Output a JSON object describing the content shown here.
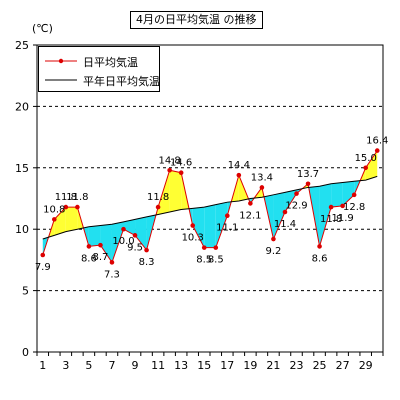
{
  "chart_data": {
    "type": "line",
    "title": "4月の日平均気温 の推移",
    "ylabel": "(℃)",
    "xlabel": "",
    "x": [
      1,
      2,
      3,
      4,
      5,
      6,
      7,
      8,
      9,
      10,
      11,
      12,
      13,
      14,
      15,
      16,
      17,
      18,
      19,
      20,
      21,
      22,
      23,
      24,
      25,
      26,
      27,
      28,
      29,
      30
    ],
    "xticks": [
      1,
      3,
      5,
      7,
      9,
      11,
      13,
      15,
      17,
      19,
      21,
      23,
      25,
      27,
      29
    ],
    "ylim": [
      0,
      25
    ],
    "yticks": [
      0,
      5,
      10,
      15,
      20,
      25
    ],
    "grid": "horizontal dashed",
    "legend_position": "top-left",
    "fill_above_color": "#ffff33",
    "fill_below_color": "#22e0f0",
    "series": [
      {
        "name": "日平均気温",
        "color": "#dd0000",
        "marker": "dot",
        "values": [
          7.9,
          10.8,
          11.8,
          11.8,
          8.6,
          8.7,
          7.3,
          10.0,
          9.5,
          8.3,
          11.8,
          14.8,
          14.6,
          10.3,
          8.5,
          8.5,
          11.1,
          14.4,
          12.1,
          13.4,
          9.2,
          11.4,
          12.9,
          13.7,
          8.6,
          11.8,
          11.9,
          12.8,
          15.0,
          16.4
        ],
        "labels": [
          "7.9",
          "10.8",
          "11.8",
          "11.8",
          "8.6",
          "8.7",
          "7.3",
          "10.0",
          "9.5",
          "8.3",
          "11.8",
          "14.8",
          "14.6",
          "10.3",
          "8.5",
          "8.5",
          "11.1",
          "14.4",
          "12.1",
          "13.4",
          "9.2",
          "11.4",
          "12.9",
          "13.7",
          "8.6",
          "11.8",
          "11.9",
          "12.8",
          "15.0",
          "16.4"
        ]
      },
      {
        "name": "平年日平均気温",
        "color": "#000000",
        "marker": "none",
        "values": [
          9.2,
          9.5,
          9.8,
          10.0,
          10.2,
          10.3,
          10.4,
          10.6,
          10.8,
          11.0,
          11.2,
          11.4,
          11.6,
          11.7,
          11.8,
          12.0,
          12.2,
          12.3,
          12.5,
          12.6,
          12.8,
          13.0,
          13.2,
          13.4,
          13.5,
          13.7,
          13.8,
          13.9,
          14.0,
          14.3
        ]
      }
    ]
  }
}
